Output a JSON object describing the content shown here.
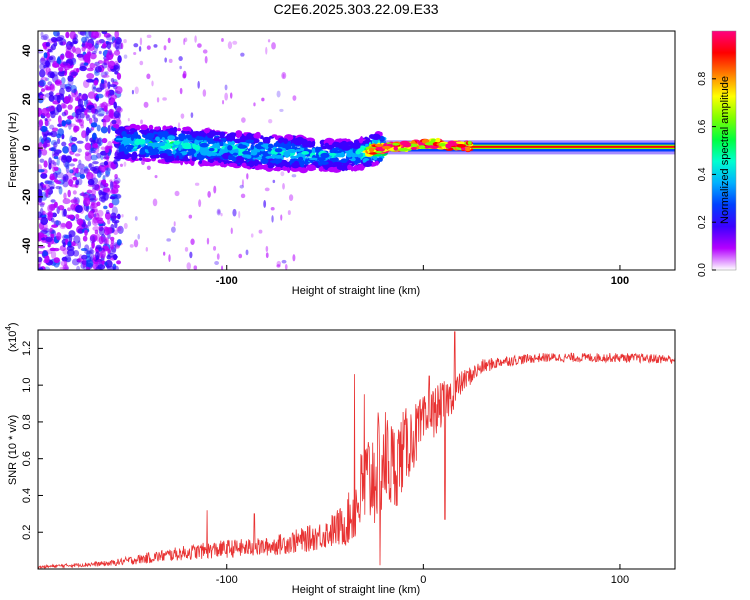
{
  "title": "C2E6.2025.303.22.09.E33",
  "chart_data": [
    {
      "type": "heatmap",
      "xlabel": "Height of straight line (km)",
      "ylabel": "Frequency (Hz)",
      "xlim": [
        -196,
        128
      ],
      "ylim": [
        -50,
        48
      ],
      "xticks": [
        -100,
        0,
        100
      ],
      "xtick_labels": [
        "-100",
        "",
        "100"
      ],
      "yticks": [
        -40,
        -20,
        0,
        20,
        40
      ],
      "ytick_labels": [
        "-40",
        "-20",
        "0",
        "20",
        "40"
      ],
      "colorbar": {
        "label": "Normalized spectral amplitude",
        "range": [
          0.0,
          1.0
        ],
        "ticks": [
          0.0,
          0.2,
          0.4,
          0.6,
          0.8
        ],
        "tick_labels": [
          "0.0",
          "0.2",
          "0.4",
          "0.6",
          "0.8"
        ],
        "colors": [
          "#ffffff",
          "#b400ff",
          "#3c00ff",
          "#0040ff",
          "#00b0ff",
          "#00ffd0",
          "#00ff40",
          "#80ff00",
          "#ffff00",
          "#ff8000",
          "#ff0000",
          "#ff0080"
        ]
      },
      "ridge": {
        "x": [
          -150,
          -120,
          -90,
          -70,
          -50,
          -35,
          -25,
          -15,
          -5,
          5,
          15,
          40,
          80,
          128
        ],
        "freq_hz": [
          2,
          1,
          -1,
          -2,
          -3,
          -3,
          -0.5,
          0.5,
          1,
          2,
          1,
          0.5,
          0.5,
          0.5
        ],
        "peak_amplitude": [
          0.4,
          0.45,
          0.4,
          0.4,
          0.38,
          0.35,
          0.85,
          0.9,
          0.95,
          1.0,
          0.9,
          0.92,
          0.92,
          0.9
        ]
      }
    },
    {
      "type": "line",
      "xlabel": "Height of straight line (km)",
      "ylabel": "SNR (10 * v/v)",
      "y_multiplier": "(x10",
      "y_multiplier_exp": "4",
      "y_multiplier_close": ")",
      "xlim": [
        -196,
        128
      ],
      "ylim": [
        0,
        1.3
      ],
      "xticks": [
        -100,
        0,
        100
      ],
      "xtick_labels": [
        "-100",
        "0",
        "100"
      ],
      "yticks": [
        0.2,
        0.4,
        0.6,
        0.8,
        1.0,
        1.2
      ],
      "ytick_labels": [
        "0.2",
        "0.4",
        "0.6",
        "0.8",
        "1.0",
        "1.2"
      ],
      "series": [
        {
          "name": "SNR",
          "color": "#e83232",
          "envelope_x": [
            -196,
            -180,
            -160,
            -140,
            -120,
            -100,
            -80,
            -70,
            -60,
            -50,
            -40,
            -35,
            -30,
            -25,
            -20,
            -15,
            -10,
            -5,
            0,
            5,
            10,
            15,
            20,
            30,
            40,
            60,
            80,
            100,
            128
          ],
          "envelope_mean": [
            0.01,
            0.02,
            0.03,
            0.06,
            0.09,
            0.11,
            0.12,
            0.14,
            0.16,
            0.19,
            0.24,
            0.32,
            0.45,
            0.52,
            0.6,
            0.55,
            0.65,
            0.72,
            0.78,
            0.85,
            0.9,
            0.95,
            1.02,
            1.1,
            1.13,
            1.15,
            1.15,
            1.15,
            1.14
          ],
          "envelope_noise": [
            0.008,
            0.01,
            0.015,
            0.03,
            0.04,
            0.05,
            0.05,
            0.06,
            0.07,
            0.08,
            0.12,
            0.18,
            0.28,
            0.3,
            0.3,
            0.25,
            0.22,
            0.18,
            0.16,
            0.14,
            0.12,
            0.1,
            0.06,
            0.04,
            0.03,
            0.025,
            0.025,
            0.025,
            0.025
          ],
          "spikes": [
            {
              "x": -110,
              "y": 0.32
            },
            {
              "x": -86,
              "y": 0.3
            },
            {
              "x": -35,
              "y": 1.06
            },
            {
              "x": -30,
              "y": 0.95
            },
            {
              "x": -22,
              "y": 0.02
            },
            {
              "x": 11,
              "y": 0.27
            },
            {
              "x": 16,
              "y": 1.29
            },
            {
              "x": 3,
              "y": 1.05
            }
          ]
        }
      ]
    }
  ]
}
